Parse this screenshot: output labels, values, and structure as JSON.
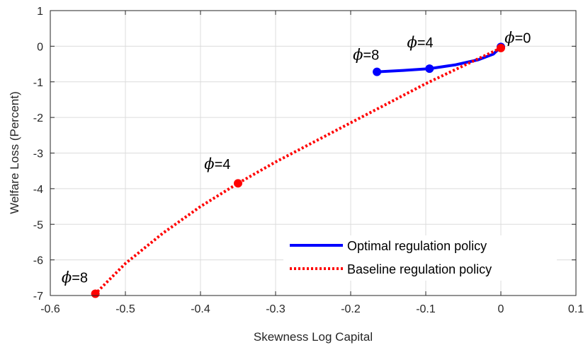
{
  "chart_data": {
    "type": "line",
    "xlabel": "Skewness Log Capital",
    "ylabel": "Welfare Loss (Percent)",
    "xlim": [
      -0.6,
      0.1
    ],
    "ylim": [
      -7,
      1
    ],
    "xticks": [
      -0.6,
      -0.5,
      -0.4,
      -0.3,
      -0.2,
      -0.1,
      0,
      0.1
    ],
    "xtick_labels": [
      "-0.6",
      "-0.5",
      "-0.4",
      "-0.3",
      "-0.2",
      "-0.1",
      "0",
      "0.1"
    ],
    "yticks": [
      1,
      0,
      -1,
      -2,
      -3,
      -4,
      -5,
      -6,
      -7
    ],
    "ytick_labels": [
      "1",
      "0",
      "-1",
      "-2",
      "-3",
      "-4",
      "-5",
      "-6",
      "-7"
    ],
    "grid": true,
    "legend_position": "bottom-right",
    "series": [
      {
        "name": "Optimal regulation policy",
        "color": "#0000ff",
        "style": "solid",
        "x": [
          -0.165,
          -0.13,
          -0.095,
          -0.06,
          -0.03,
          -0.01,
          0
        ],
        "y": [
          -0.72,
          -0.68,
          -0.63,
          -0.52,
          -0.38,
          -0.22,
          -0.02
        ],
        "markers": [
          {
            "x": -0.165,
            "y": -0.72,
            "label": "ϕ=8"
          },
          {
            "x": -0.095,
            "y": -0.63,
            "label": "ϕ=4"
          },
          {
            "x": 0,
            "y": -0.02,
            "label": "ϕ=0"
          }
        ]
      },
      {
        "name": "Baseline regulation policy",
        "color": "#ff0000",
        "style": "dotted",
        "x": [
          0,
          -0.05,
          -0.1,
          -0.15,
          -0.2,
          -0.25,
          -0.3,
          -0.35,
          -0.4,
          -0.45,
          -0.5,
          -0.54
        ],
        "y": [
          -0.05,
          -0.55,
          -1.05,
          -1.6,
          -2.15,
          -2.7,
          -3.25,
          -3.85,
          -4.5,
          -5.25,
          -6.1,
          -6.95
        ],
        "markers": [
          {
            "x": 0,
            "y": -0.05,
            "label": ""
          },
          {
            "x": -0.35,
            "y": -3.85,
            "label": "ϕ=4"
          },
          {
            "x": -0.54,
            "y": -6.95,
            "label": "ϕ=8"
          }
        ]
      }
    ],
    "annotations": [
      {
        "symbol": "ϕ",
        "rest": "=0",
        "x": 0.005,
        "y": 0.1
      },
      {
        "symbol": "ϕ",
        "rest": "=4",
        "x": -0.125,
        "y": -0.03
      },
      {
        "symbol": "ϕ",
        "rest": "=8",
        "x": -0.197,
        "y": -0.38
      },
      {
        "symbol": "ϕ",
        "rest": "=4",
        "x": -0.395,
        "y": -3.45
      },
      {
        "symbol": "ϕ",
        "rest": "=8",
        "x": -0.585,
        "y": -6.63
      }
    ]
  }
}
